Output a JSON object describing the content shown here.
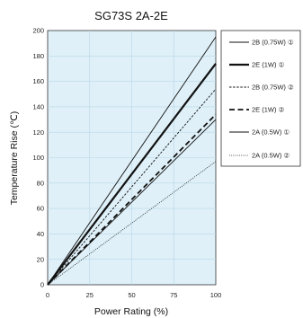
{
  "chart_data": {
    "type": "line",
    "title": "SG73S 2A-2E",
    "xlabel": "Power Rating (%)",
    "ylabel": "Temperature Rise (℃)",
    "xlim": [
      0,
      100
    ],
    "ylim": [
      0,
      200
    ],
    "x_ticks": [
      "0",
      "25",
      "50",
      "75",
      "100"
    ],
    "y_ticks": [
      "0",
      "20",
      "40",
      "60",
      "80",
      "100",
      "120",
      "140",
      "160",
      "180",
      "200"
    ],
    "plot_background": "#dff0f8",
    "grid": true,
    "legend_position": "right",
    "series": [
      {
        "name": "2B (0.75W) ①",
        "x": [
          0,
          100
        ],
        "y": [
          0,
          195
        ],
        "color": "#111111",
        "style": "solid",
        "width": 0.9
      },
      {
        "name": "2E (1W) ①",
        "x": [
          0,
          100
        ],
        "y": [
          0,
          174
        ],
        "color": "#111111",
        "style": "solid",
        "width": 2.2
      },
      {
        "name": "2B (0.75W) ②",
        "x": [
          0,
          100
        ],
        "y": [
          0,
          154
        ],
        "color": "#111111",
        "style": "dashed-fine",
        "width": 0.9
      },
      {
        "name": "2E (1W) ②",
        "x": [
          0,
          100
        ],
        "y": [
          0,
          134
        ],
        "color": "#111111",
        "style": "dashed-bold",
        "width": 1.8
      },
      {
        "name": "2A (0.5W) ①",
        "x": [
          0,
          100
        ],
        "y": [
          0,
          130
        ],
        "color": "#111111",
        "style": "solid",
        "width": 0.9
      },
      {
        "name": "2A (0.5W) ②",
        "x": [
          0,
          100
        ],
        "y": [
          0,
          97
        ],
        "color": "#111111",
        "style": "dotted",
        "width": 0.8
      }
    ]
  }
}
